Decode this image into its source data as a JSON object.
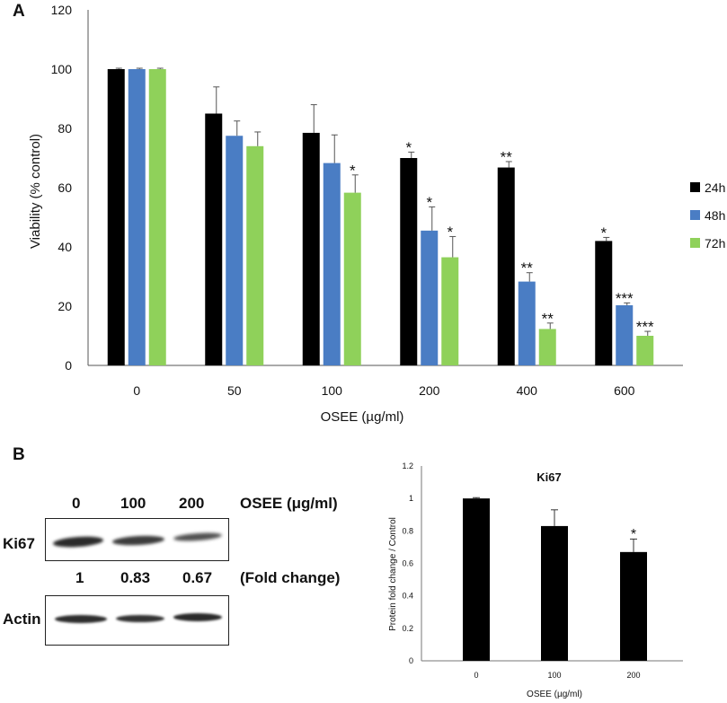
{
  "panel_a": {
    "letter": "A",
    "legend": [
      {
        "name": "24h",
        "color": "#000000"
      },
      {
        "name": "48h",
        "color": "#4a7dc4"
      },
      {
        "name": "72h",
        "color": "#8fd15a"
      }
    ]
  },
  "panel_b": {
    "letter": "B",
    "blot": {
      "lane_labels": [
        "0",
        "100",
        "200"
      ],
      "condition_label": "OSEE (μg/ml)",
      "row1_label": "Ki67",
      "row2_label": "Actin",
      "fold_values": [
        "1",
        "0.83",
        "0.67"
      ],
      "fold_label": "(Fold change)"
    }
  },
  "chart_data": [
    {
      "type": "bar",
      "title": "",
      "xlabel": "OSEE (µg/ml)",
      "ylabel": "Viability (% control)",
      "categories": [
        "0",
        "50",
        "100",
        "200",
        "400",
        "600"
      ],
      "ylim": [
        0,
        120
      ],
      "yticks": [
        0,
        20,
        40,
        60,
        80,
        100,
        120
      ],
      "legend_position": "right",
      "series": [
        {
          "name": "24h",
          "color": "#000000",
          "values": [
            100,
            85,
            78.5,
            70,
            66.8,
            42
          ],
          "errors": [
            0.3,
            9,
            9.5,
            2,
            2,
            1.2
          ],
          "significance": [
            "",
            "",
            "",
            "*",
            "**",
            "*"
          ]
        },
        {
          "name": "48h",
          "color": "#4a7dc4",
          "values": [
            100,
            77.5,
            68.3,
            45.5,
            28.3,
            20.3
          ],
          "errors": [
            0.3,
            5,
            9.5,
            8,
            3,
            0.8
          ],
          "significance": [
            "",
            "",
            "",
            "*",
            "**",
            "***"
          ]
        },
        {
          "name": "72h",
          "color": "#8fd15a",
          "values": [
            100,
            74,
            58.3,
            36.5,
            12.3,
            10
          ],
          "errors": [
            0.3,
            4.8,
            6,
            7,
            2,
            1.5
          ],
          "significance": [
            "",
            "",
            "*",
            "*",
            "**",
            "***"
          ]
        }
      ]
    },
    {
      "type": "bar",
      "title": "Ki67",
      "xlabel": "OSEE (µg/ml)",
      "ylabel": "Protein fold change / Control",
      "categories": [
        "0",
        "100",
        "200"
      ],
      "ylim": [
        0,
        1.2
      ],
      "yticks": [
        "0",
        "0.2",
        "0.4",
        "0.6",
        "0.8",
        "1",
        "1.2"
      ],
      "series": [
        {
          "name": "Ki67",
          "color": "#000000",
          "values": [
            1,
            0.83,
            0.67
          ],
          "errors": [
            0.005,
            0.1,
            0.08
          ],
          "significance": [
            "",
            "",
            "*"
          ]
        }
      ]
    }
  ]
}
